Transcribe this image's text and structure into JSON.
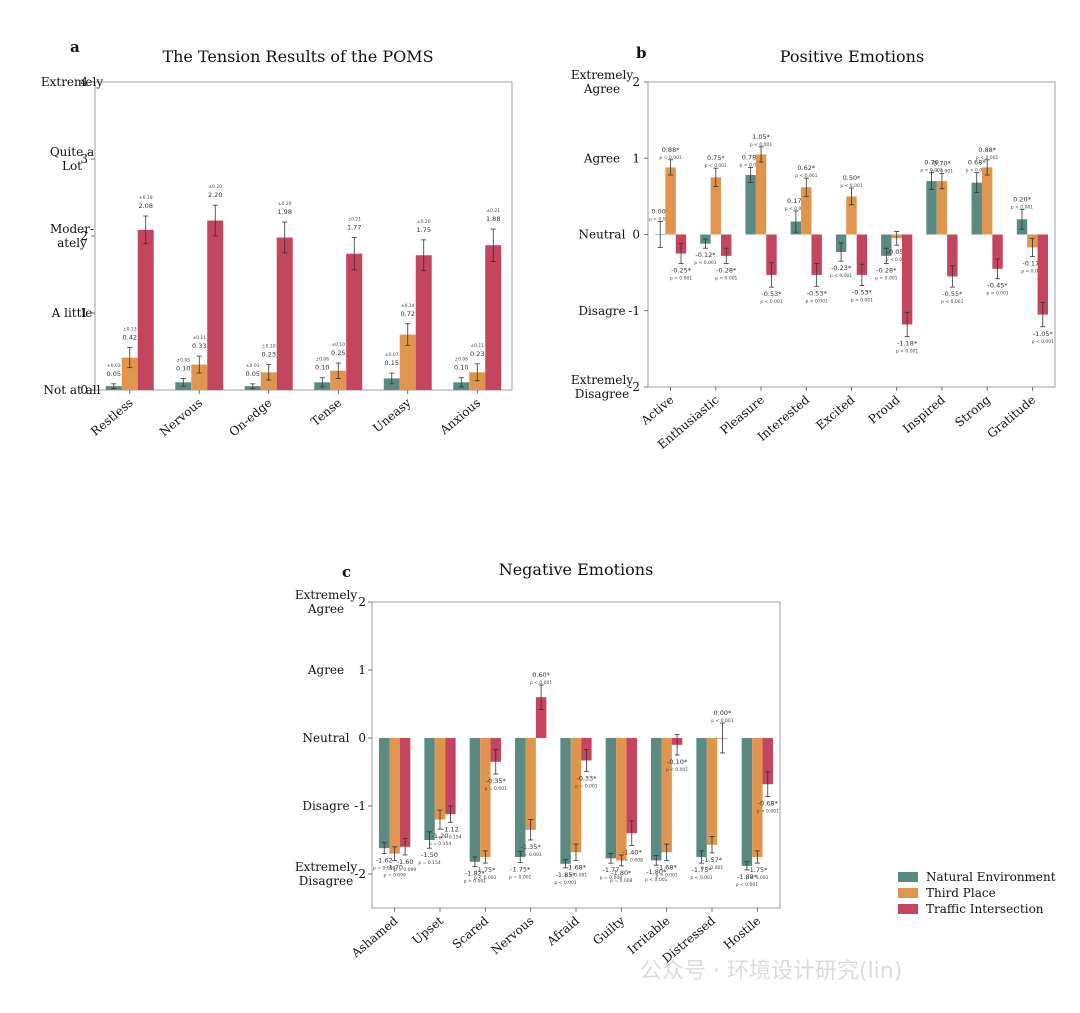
{
  "colors": {
    "natural": "#5a8a82",
    "third": "#e0954f",
    "traffic": "#c4455f"
  },
  "legend": {
    "items": [
      "Natural Environment",
      "Third Place",
      "Traffic Intersection"
    ]
  },
  "watermark": "公众号 · 环境设计研究(lin)",
  "chart_data": [
    {
      "type": "bar",
      "panel": "a",
      "title": "The Tension Results of the POMS",
      "categories": [
        "Restless",
        "Nervous",
        "On-edge",
        "Tense",
        "Uneasy",
        "Anxious"
      ],
      "ylim": [
        0,
        4
      ],
      "yticks": [
        0,
        1,
        2,
        3,
        4
      ],
      "ytick_labels": [
        "0",
        "1",
        "2",
        "3",
        "4"
      ],
      "ylabels": [
        {
          "value": 4,
          "lines": [
            "Extremely"
          ]
        },
        {
          "value": 3,
          "lines": [
            "Quite a",
            "Lot"
          ]
        },
        {
          "value": 2,
          "lines": [
            "Moder-",
            "ately"
          ]
        },
        {
          "value": 1,
          "lines": [
            "A little"
          ]
        },
        {
          "value": 0,
          "lines": [
            "Not at all"
          ]
        }
      ],
      "series": [
        {
          "name": "Natural Environment",
          "values": [
            0.05,
            0.1,
            0.05,
            0.1,
            0.15,
            0.1
          ],
          "err": [
            0.03,
            0.05,
            0.03,
            0.06,
            0.07,
            0.06
          ],
          "labels": [
            "0.05",
            "0.10",
            "0.05",
            "0.10",
            "0.15",
            "0.10"
          ],
          "sublabels": [
            "±0.03",
            "±0.05",
            "±0.03",
            "±0.06",
            "±0.07",
            "±0.06"
          ]
        },
        {
          "name": "Third Place",
          "values": [
            0.42,
            0.33,
            0.23,
            0.25,
            0.72,
            0.23
          ],
          "err": [
            0.13,
            0.11,
            0.1,
            0.1,
            0.14,
            0.11
          ],
          "labels": [
            "0.42",
            "0.33",
            "0.23",
            "0.25",
            "0.72",
            "0.23"
          ],
          "sublabels": [
            "±0.13",
            "±0.11",
            "±0.10",
            "±0.10",
            "±0.14",
            "±0.11"
          ]
        },
        {
          "name": "Traffic Intersection",
          "values": [
            2.08,
            2.2,
            1.98,
            1.77,
            1.75,
            1.88
          ],
          "err": [
            0.18,
            0.2,
            0.2,
            0.21,
            0.2,
            0.21
          ],
          "labels": [
            "2.08",
            "2.20",
            "1.98",
            "1.77",
            "1.75",
            "1.88"
          ],
          "sublabels": [
            "±0.18",
            "±0.20",
            "±0.20",
            "±0.21",
            "±0.20",
            "±0.21"
          ]
        }
      ]
    },
    {
      "type": "bar",
      "panel": "b",
      "title": "Positive Emotions",
      "categories": [
        "Active",
        "Enthusiastic",
        "Pleasure",
        "Interested",
        "Excited",
        "Proud",
        "Inspired",
        "Strong",
        "Gratitude"
      ],
      "ylim": [
        -2,
        2
      ],
      "yticks": [
        -2,
        -1,
        0,
        1,
        2
      ],
      "ytick_labels": [
        "-2",
        "-1",
        "0",
        "1",
        "2"
      ],
      "ylabels": [
        {
          "value": 2,
          "lines": [
            "Extremely",
            "Agree"
          ]
        },
        {
          "value": 1,
          "lines": [
            "Agree"
          ]
        },
        {
          "value": 0,
          "lines": [
            "Neutral"
          ]
        },
        {
          "value": -1,
          "lines": [
            "Disagre"
          ]
        },
        {
          "value": -2,
          "lines": [
            "Extremely",
            "Disagree"
          ]
        }
      ],
      "series": [
        {
          "name": "Natural Environment",
          "values": [
            0.0,
            -0.12,
            0.78,
            0.17,
            -0.23,
            -0.28,
            0.7,
            0.68,
            0.2
          ],
          "err": [
            0.17,
            0.06,
            0.1,
            0.14,
            0.12,
            0.1,
            0.11,
            0.13,
            0.13
          ],
          "labels": [
            "0.00*",
            "-0.12*",
            "0.78*",
            "0.17*",
            "-0.23*",
            "-0.28*",
            "0.70",
            "0.68*",
            "0.20*"
          ],
          "sublabels": [
            "p < 0.001",
            "p < 0.001",
            "p < 0.001",
            "p < 0.001",
            "p < 0.001",
            "p < 0.001",
            "p < 0.001",
            "p < 0.001",
            "p < 0.001"
          ]
        },
        {
          "name": "Third Place",
          "values": [
            0.88,
            0.75,
            1.05,
            0.62,
            0.5,
            -0.05,
            0.7,
            0.88,
            -0.17
          ],
          "err": [
            0.1,
            0.12,
            0.1,
            0.12,
            0.11,
            0.09,
            0.1,
            0.1,
            0.12
          ],
          "labels": [
            "0.88*",
            "0.75*",
            "1.05*",
            "0.62*",
            "0.50*",
            "-0.05*",
            "0.70*",
            "0.88*",
            "-0.17*"
          ],
          "sublabels": [
            "p < 0.001",
            "p < 0.001",
            "p < 0.001",
            "p < 0.001",
            "p < 0.001",
            "p < 0.001",
            "p < 0.001",
            "p < 0.001",
            "p < 0.001"
          ]
        },
        {
          "name": "Traffic Intersection",
          "values": [
            -0.25,
            -0.28,
            -0.53,
            -0.53,
            -0.53,
            -1.18,
            -0.55,
            -0.45,
            -1.05
          ],
          "err": [
            0.13,
            0.1,
            0.16,
            0.15,
            0.14,
            0.16,
            0.14,
            0.13,
            0.16
          ],
          "labels": [
            "-0.25*",
            "-0.28*",
            "-0.53*",
            "-0.53*",
            "-0.53*",
            "-1.18*",
            "-0.55*",
            "-0.45*",
            "-1.05*"
          ],
          "sublabels": [
            "p < 0.001",
            "p < 0.001",
            "p < 0.001",
            "p < 0.001",
            "p < 0.001",
            "p < 0.001",
            "p < 0.001",
            "p < 0.001",
            "p < 0.001"
          ]
        }
      ]
    },
    {
      "type": "bar",
      "panel": "c",
      "title": "Negative Emotions",
      "categories": [
        "Ashamed",
        "Upset",
        "Scared",
        "Nervous",
        "Afraid",
        "Guilty",
        "Irritable",
        "Distressed",
        "Hostile"
      ],
      "ylim": [
        -2.5,
        2
      ],
      "yticks": [
        -2,
        -1,
        0,
        1,
        2
      ],
      "ytick_labels": [
        "-2",
        "-1",
        "0",
        "1",
        "2"
      ],
      "ylabels": [
        {
          "value": 2,
          "lines": [
            "Extremely",
            "Agree"
          ]
        },
        {
          "value": 1,
          "lines": [
            "Agree"
          ]
        },
        {
          "value": 0,
          "lines": [
            "Neutral"
          ]
        },
        {
          "value": -1,
          "lines": [
            "Disagre"
          ]
        },
        {
          "value": -2,
          "lines": [
            "Extremely",
            "Disagree"
          ]
        }
      ],
      "series": [
        {
          "name": "Natural Environment",
          "values": [
            -1.62,
            -1.5,
            -1.82,
            -1.75,
            -1.85,
            -1.77,
            -1.8,
            -1.75,
            -1.88
          ],
          "err": [
            0.08,
            0.12,
            0.07,
            0.08,
            0.06,
            0.07,
            0.07,
            0.09,
            0.06
          ],
          "labels": [
            "-1.62",
            "-1.50",
            "-1.82*",
            "-1.75*",
            "-1.85*",
            "-1.77",
            "-1.80*",
            "-1.75*",
            "-1.88*"
          ],
          "sublabels": [
            "p = 0.099",
            "p = 0.154",
            "p < 0.001",
            "p = 0.001",
            "p < 0.001",
            "p = 0.008",
            "p < 0.001",
            "p < 0.001",
            "p < 0.001"
          ]
        },
        {
          "name": "Third Place",
          "values": [
            -1.7,
            -1.2,
            -1.75,
            -1.35,
            -1.68,
            -1.8,
            -1.68,
            -1.57,
            -1.75
          ],
          "err": [
            0.1,
            0.14,
            0.09,
            0.15,
            0.12,
            0.08,
            0.12,
            0.12,
            0.09
          ],
          "labels": [
            "-1.70",
            "-1.20",
            "-1.75*",
            "-1.35*",
            "-1.68*",
            "-1.80*",
            "-1.68*",
            "-1.57*",
            "-1.75*"
          ],
          "sublabels": [
            "p = 0.099",
            "p = 0.154",
            "p < 0.001",
            "p = 0.001",
            "p < 0.001",
            "p = 0.008",
            "p < 0.001",
            "p < 0.001",
            "p < 0.001"
          ]
        },
        {
          "name": "Traffic Intersection",
          "values": [
            -1.6,
            -1.12,
            -0.35,
            0.6,
            -0.33,
            -1.4,
            -0.1,
            0.0,
            -0.68
          ],
          "err": [
            0.12,
            0.12,
            0.18,
            0.18,
            0.16,
            0.18,
            0.15,
            0.22,
            0.18
          ],
          "labels": [
            "-1.60",
            "-1.12",
            "-0.35*",
            "0.60*",
            "-0.33*",
            "-1.40*",
            "-0.10*",
            "0.00*",
            "-0.68*"
          ],
          "sublabels": [
            "p = 0.099",
            "p = 0.154",
            "p = 0.001",
            "p < 0.001",
            "p = 0.001",
            "p = 0.008",
            "p < 0.001",
            "p < 0.001",
            "p < 0.001"
          ]
        }
      ]
    }
  ]
}
